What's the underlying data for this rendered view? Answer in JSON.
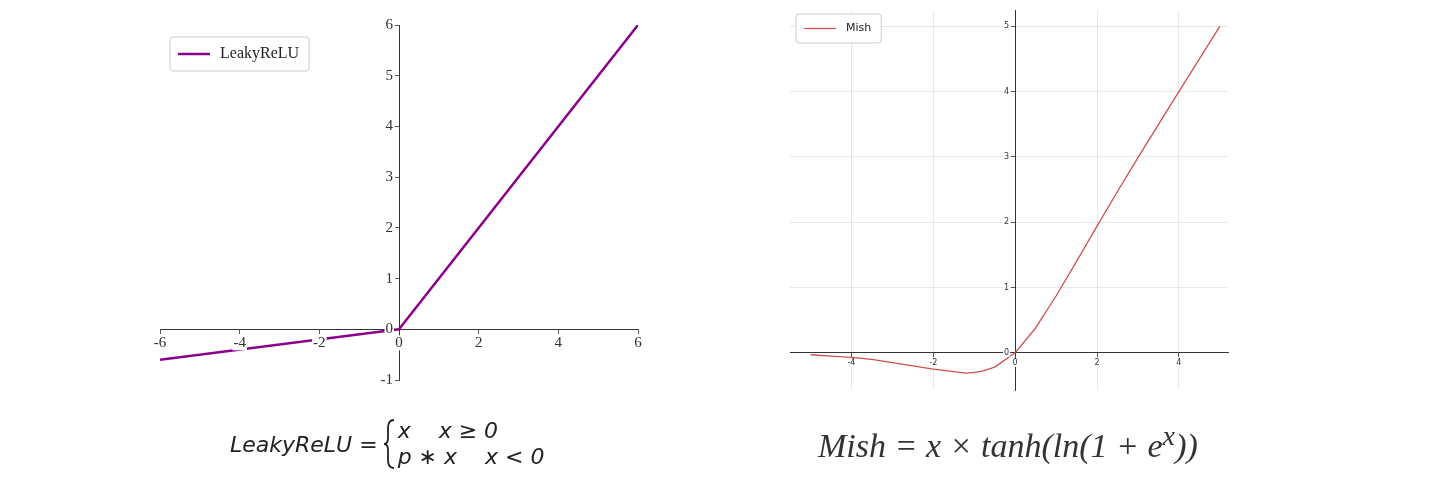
{
  "chart_data": [
    {
      "type": "line",
      "legend": "top left",
      "grid": false,
      "marker": "none",
      "line_style": "solid",
      "x": [
        -6,
        0,
        6
      ],
      "xlim": [
        -6,
        6
      ],
      "ylim": [
        -1,
        6
      ],
      "xticks": [
        -6,
        -4,
        -2,
        0,
        2,
        4,
        6
      ],
      "yticks": [
        -1,
        0,
        1,
        2,
        3,
        4,
        5,
        6
      ],
      "series": [
        {
          "name": "LeakyReLU",
          "color": "#8b008b",
          "values": [
            -0.6,
            0,
            6
          ]
        }
      ],
      "annotations": [
        "LeakyReLU =",
        "x    x ≥ 0",
        "p ∗ x    x < 0"
      ]
    },
    {
      "type": "line",
      "legend": "top left",
      "grid": true,
      "marker": "none",
      "line_style": "solid",
      "x": [
        -5,
        -4.5,
        -4,
        -3.5,
        -3,
        -2.5,
        -2,
        -1.5,
        -1.2,
        -1,
        -0.8,
        -0.5,
        0,
        0.5,
        1,
        1.5,
        2,
        2.5,
        3,
        4,
        5
      ],
      "xlim": [
        -5.5,
        5.2
      ],
      "ylim": [
        -0.57,
        5.25
      ],
      "xticks": [
        -4,
        -2,
        0,
        2,
        4
      ],
      "yticks": [
        0,
        1,
        2,
        3,
        4,
        5
      ],
      "series": [
        {
          "name": "Mish",
          "color": "#d0504f",
          "values": [
            -0.03,
            -0.05,
            -0.07,
            -0.1,
            -0.15,
            -0.2,
            -0.25,
            -0.29,
            -0.31,
            -0.3,
            -0.28,
            -0.22,
            0,
            0.38,
            0.87,
            1.4,
            1.94,
            2.47,
            2.99,
            4.0,
            5.0
          ]
        }
      ],
      "annotations": [
        "Mish = x × tanh(ln(1 + e$^{x}$))"
      ]
    }
  ]
}
